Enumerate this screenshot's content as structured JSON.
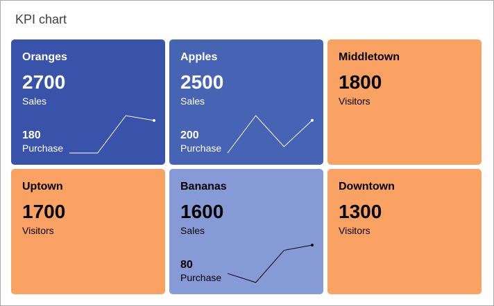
{
  "chart_data": {
    "type": "kpi",
    "title": "KPI chart",
    "tiles": [
      {
        "name": "Oranges",
        "value": "2700",
        "label": "Sales",
        "sub_value": "180",
        "sub_label": "Purchase",
        "color": "#3a53aa",
        "text_color": "#ffffff",
        "trend": [
          0,
          0,
          1,
          0.87
        ]
      },
      {
        "name": "Apples",
        "value": "2500",
        "label": "Sales",
        "sub_value": "200",
        "sub_label": "Purchase",
        "color": "#4763b4",
        "text_color": "#ffffff",
        "trend": [
          0,
          1,
          0.17,
          0.875
        ]
      },
      {
        "name": "Middletown",
        "value": "1800",
        "label": "Visitors",
        "color": "#f9a263",
        "text_color": "#000000"
      },
      {
        "name": "Uptown",
        "value": "1700",
        "label": "Visitors",
        "color": "#f9a263",
        "text_color": "#000000"
      },
      {
        "name": "Bananas",
        "value": "1600",
        "label": "Sales",
        "sub_value": "80",
        "sub_label": "Purchase",
        "color": "#869ad6",
        "text_color": "#000000",
        "trend": [
          0.24,
          0,
          0.86,
          1
        ]
      },
      {
        "name": "Downtown",
        "value": "1300",
        "label": "Visitors",
        "color": "#f9a263",
        "text_color": "#000000"
      }
    ]
  }
}
